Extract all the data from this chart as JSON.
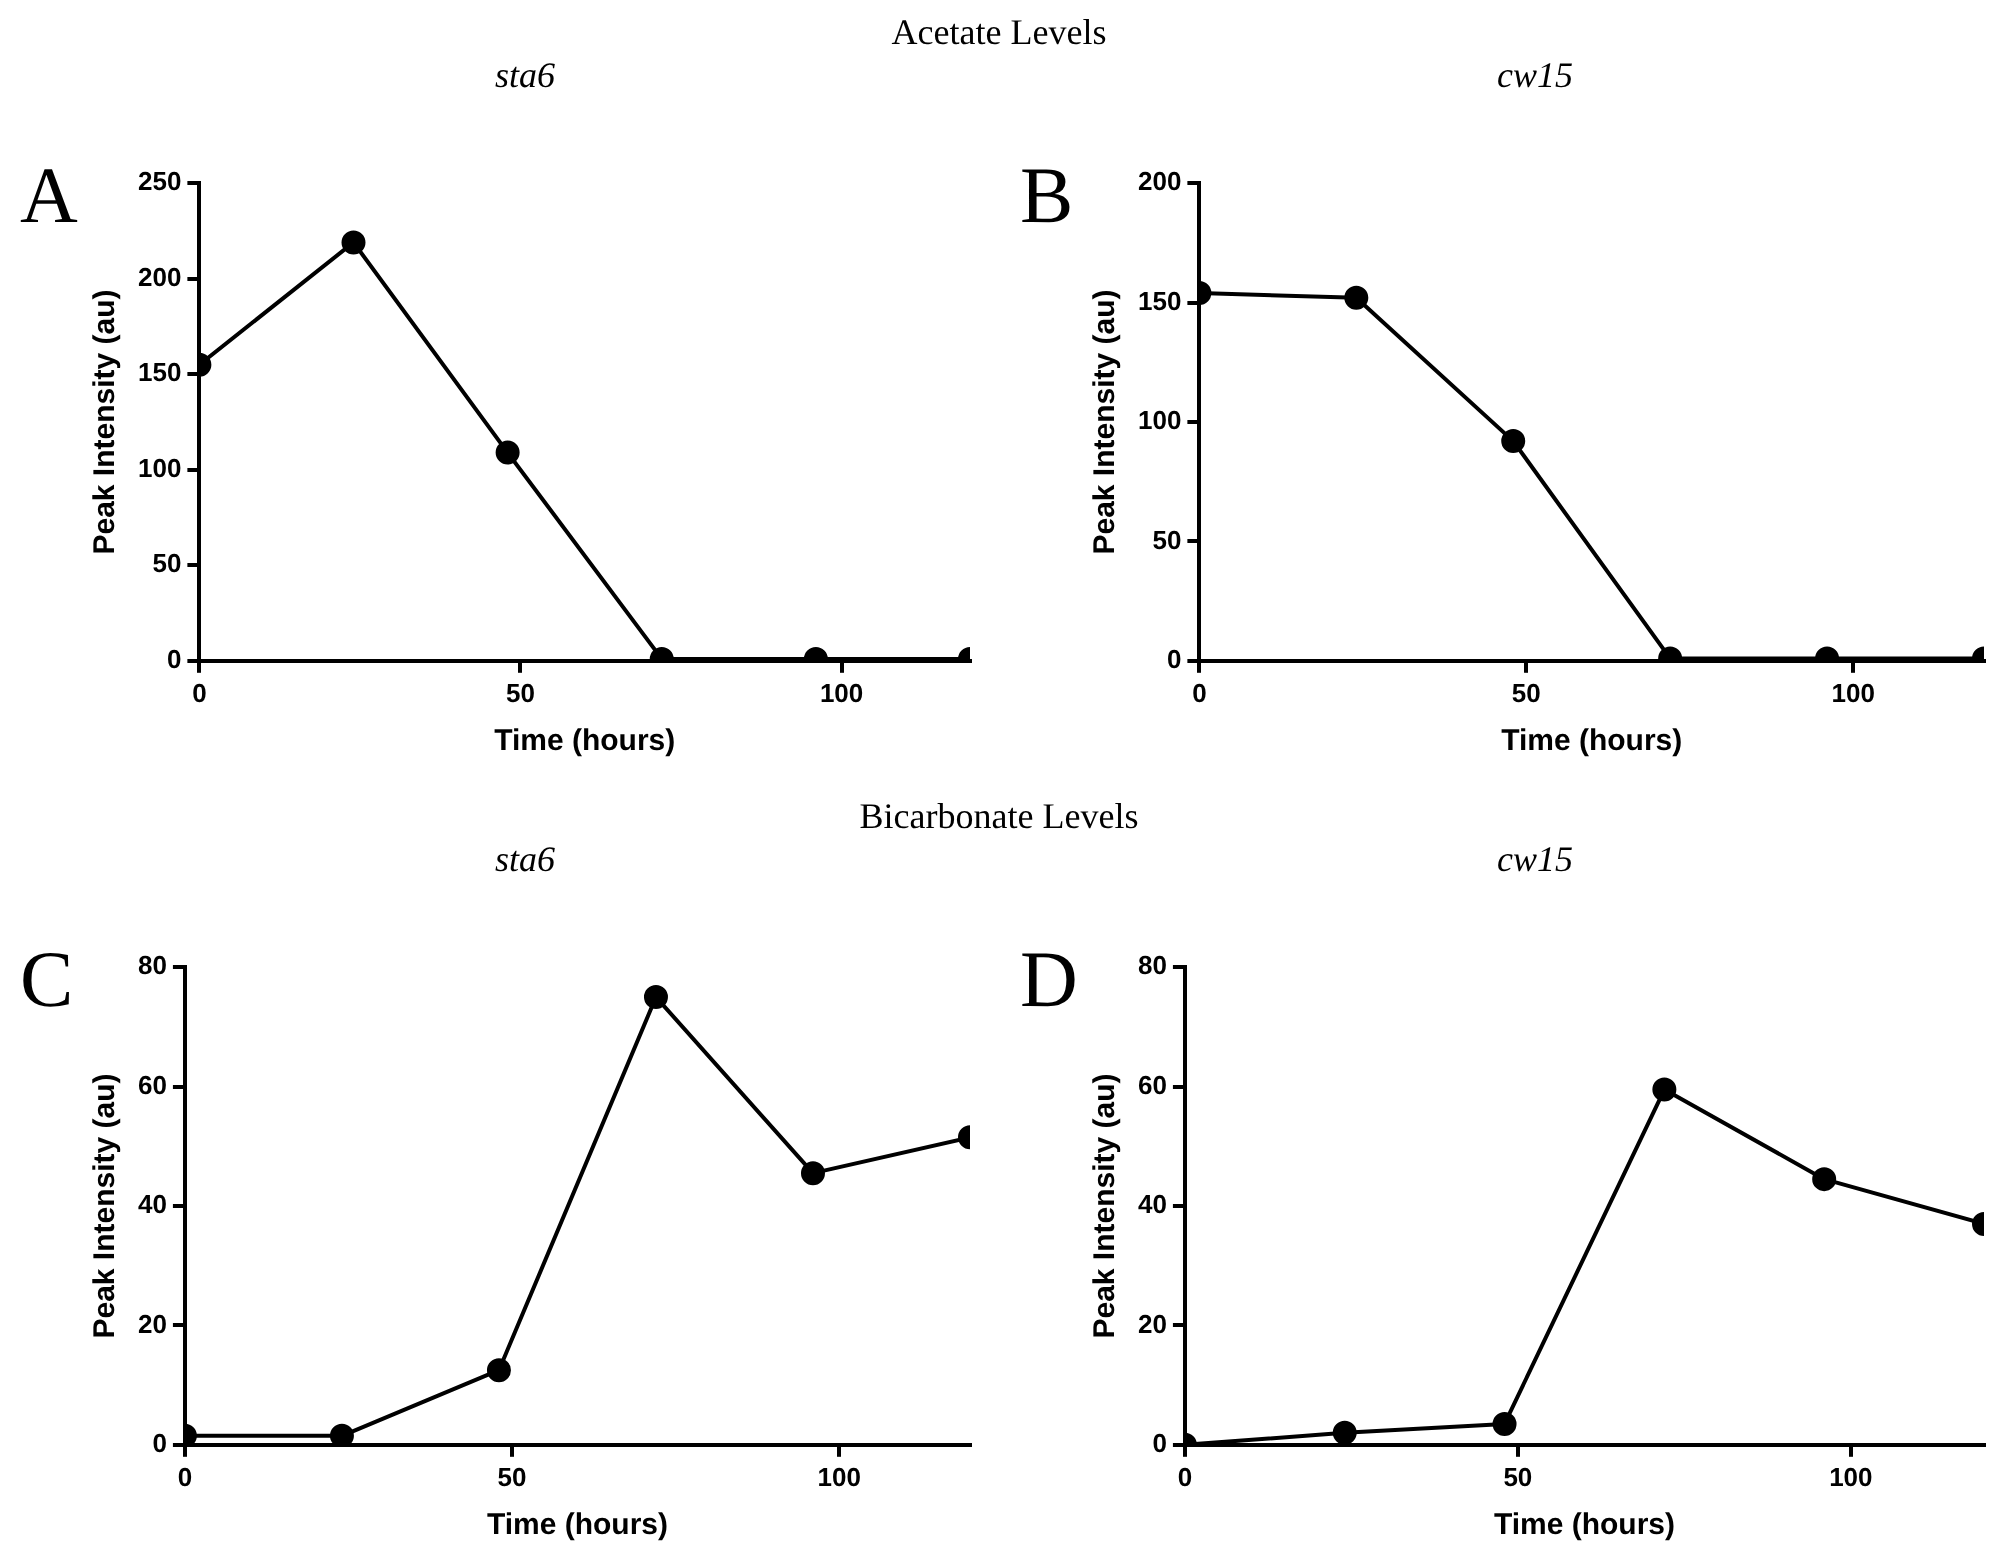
{
  "chart_data": [
    {
      "type": "line",
      "title": "sta6",
      "annotations": [
        "A",
        "Acetate Levels"
      ],
      "xlabel": "Time (hours)",
      "ylabel": "Peak Intensity (au)",
      "x": [
        0,
        24,
        48,
        72,
        96,
        120
      ],
      "series": [
        {
          "color": "#000000",
          "values": [
            155,
            219,
            109,
            1,
            1,
            1
          ]
        }
      ],
      "xlim": [
        0,
        120
      ],
      "xticks": [
        0,
        50,
        100
      ],
      "ylim": [
        0,
        250
      ],
      "yticks": [
        0,
        50,
        100,
        150,
        200,
        250
      ],
      "grid": false,
      "legend": false,
      "marker": "circle",
      "line_style": "solid"
    },
    {
      "type": "line",
      "title": "cw15",
      "annotations": [
        "B"
      ],
      "xlabel": "Time (hours)",
      "ylabel": "Peak Intensity (au)",
      "x": [
        0,
        24,
        48,
        72,
        96,
        120
      ],
      "series": [
        {
          "color": "#000000",
          "values": [
            154,
            152,
            92,
            1,
            1,
            1
          ]
        }
      ],
      "xlim": [
        0,
        120
      ],
      "xticks": [
        0,
        50,
        100
      ],
      "ylim": [
        0,
        200
      ],
      "yticks": [
        0,
        50,
        100,
        150,
        200
      ],
      "grid": false,
      "legend": false,
      "marker": "circle",
      "line_style": "solid"
    },
    {
      "type": "line",
      "title": "sta6",
      "annotations": [
        "C",
        "Bicarbonate Levels"
      ],
      "xlabel": "Time (hours)",
      "ylabel": "Peak Intensity (au)",
      "x": [
        0,
        24,
        48,
        72,
        96,
        120
      ],
      "series": [
        {
          "color": "#000000",
          "values": [
            1.5,
            1.5,
            12.5,
            75,
            45.5,
            51.5
          ]
        }
      ],
      "xlim": [
        0,
        120
      ],
      "xticks": [
        0,
        50,
        100
      ],
      "ylim": [
        0,
        80
      ],
      "yticks": [
        0,
        20,
        40,
        60,
        80
      ],
      "grid": false,
      "legend": false,
      "marker": "circle",
      "line_style": "solid"
    },
    {
      "type": "line",
      "title": "cw15",
      "annotations": [
        "D"
      ],
      "xlabel": "Time (hours)",
      "ylabel": "Peak Intensity (au)",
      "x": [
        0,
        24,
        48,
        72,
        96,
        120
      ],
      "series": [
        {
          "color": "#000000",
          "values": [
            0,
            2,
            3.5,
            59.5,
            44.5,
            37
          ]
        }
      ],
      "xlim": [
        0,
        120
      ],
      "xticks": [
        0,
        50,
        100
      ],
      "ylim": [
        0,
        80
      ],
      "yticks": [
        0,
        20,
        40,
        60,
        80
      ],
      "grid": false,
      "legend": false,
      "marker": "circle",
      "line_style": "solid"
    }
  ]
}
